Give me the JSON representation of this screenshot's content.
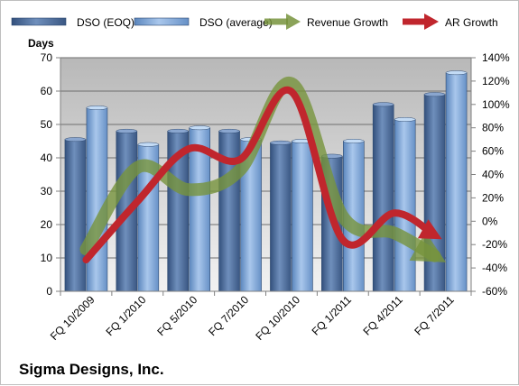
{
  "chart_data": {
    "type": "bar",
    "title": "Sigma Designs, Inc.",
    "ylabel": "Days",
    "xlabel": "",
    "categories": [
      "FQ 10/2009",
      "FQ 1/2010",
      "FQ 5/2010",
      "FQ 7/2010",
      "FQ 10/2010",
      "FQ 1/2011",
      "FQ 4/2011",
      "FQ 7/2011"
    ],
    "ylim": [
      0,
      70
    ],
    "y_ticks": [
      0,
      10,
      20,
      30,
      40,
      50,
      60,
      70
    ],
    "y2lim": [
      -60,
      140
    ],
    "y2_ticks": [
      "-60%",
      "-40%",
      "-20%",
      "0%",
      "20%",
      "40%",
      "60%",
      "80%",
      "100%",
      "120%",
      "140%"
    ],
    "grid": true,
    "legend_position": "top",
    "series": [
      {
        "name": "DSO (EOQ)",
        "type": "bar",
        "axis": "left",
        "color": "#4a6a96",
        "values": [
          45.5,
          48,
          48,
          48,
          44.5,
          40.5,
          56,
          59
        ]
      },
      {
        "name": "DSO (average)",
        "type": "bar",
        "axis": "left",
        "color": "#7fa6d6",
        "values": [
          55,
          44,
          49,
          45.5,
          45,
          45,
          51.5,
          65.5
        ]
      },
      {
        "name": "Revenue Growth",
        "type": "line",
        "axis": "right",
        "color": "#77933c",
        "values": [
          -24,
          46,
          27,
          44,
          118,
          4,
          -10,
          -35
        ]
      },
      {
        "name": "AR Growth",
        "type": "line",
        "axis": "right",
        "color": "#c0262d",
        "values": [
          -33,
          17,
          62,
          53,
          111,
          -16,
          7,
          -17
        ]
      }
    ]
  }
}
